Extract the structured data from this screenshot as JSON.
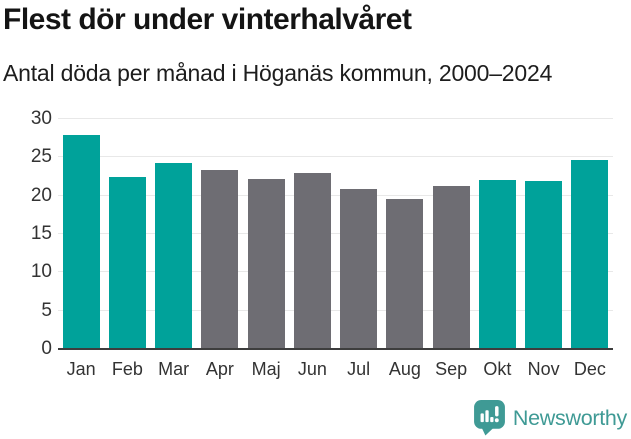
{
  "header": {
    "title": "Flest dör under vinterhalvåret",
    "subtitle": "Antal döda per månad i Höganäs kommun, 2000–2024"
  },
  "chart_data": {
    "type": "bar",
    "categories": [
      "Jan",
      "Feb",
      "Mar",
      "Apr",
      "Maj",
      "Jun",
      "Jul",
      "Aug",
      "Sep",
      "Okt",
      "Nov",
      "Dec"
    ],
    "values": [
      27.9,
      22.4,
      24.3,
      23.4,
      22.2,
      23.0,
      20.9,
      19.6,
      21.2,
      22.0,
      21.9,
      24.7
    ],
    "bar_colors": [
      "#00a29a",
      "#00a29a",
      "#00a29a",
      "#6e6d73",
      "#6e6d73",
      "#6e6d73",
      "#6e6d73",
      "#6e6d73",
      "#6e6d73",
      "#00a29a",
      "#00a29a",
      "#00a29a"
    ],
    "highlight_color": "#00a29a",
    "default_color": "#6e6d73",
    "title": "Flest dör under vinterhalvåret",
    "subtitle": "Antal döda per månad i Höganäs kommun, 2000–2024",
    "xlabel": "",
    "ylabel": "",
    "ylim": [
      0,
      30
    ],
    "yticks": [
      0,
      5,
      10,
      15,
      20,
      25,
      30
    ],
    "grid": true,
    "gridline_color": "#e8e8e8",
    "baseline_color": "#3d3d3d",
    "legend": "none"
  },
  "footer": {
    "brand": "Newsworthy",
    "brand_color": "#3f9a95",
    "logo_icon": "newsworthy-chart-speech-bubble"
  }
}
